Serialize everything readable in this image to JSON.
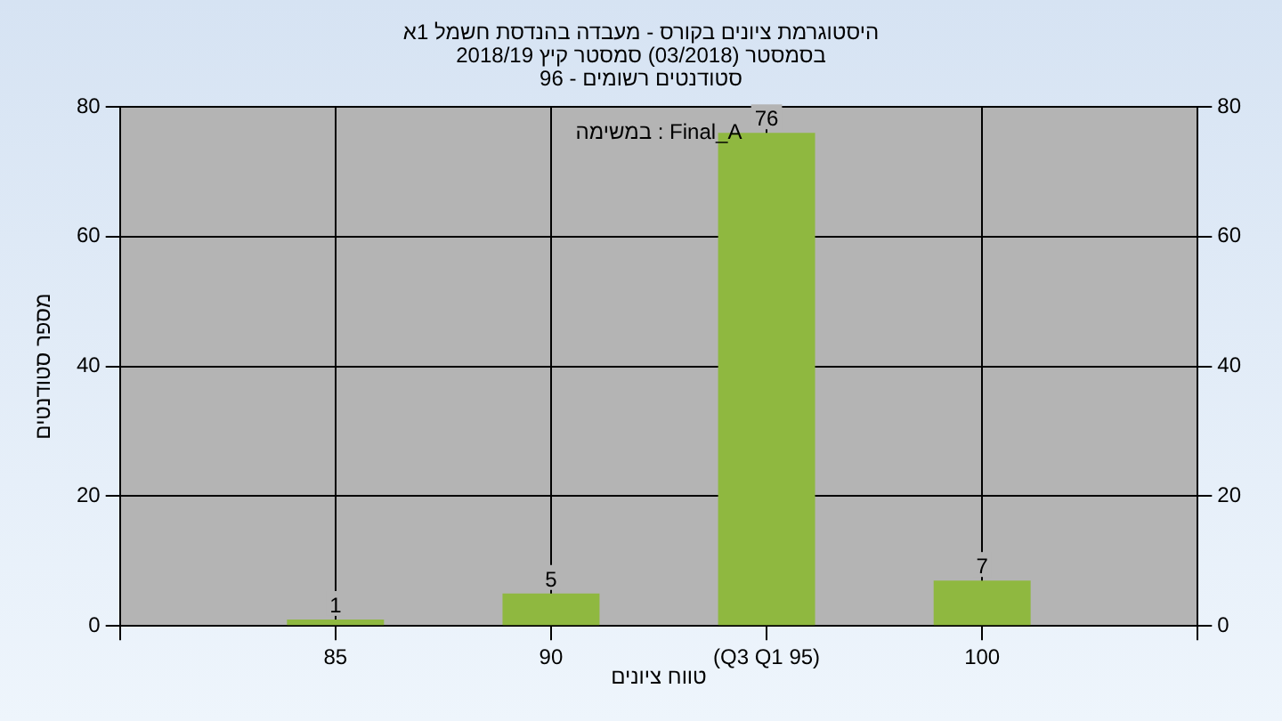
{
  "chart_data": {
    "type": "bar",
    "title": "היסטוגרמת ציונים בקורס - מעבדה בהנדסת חשמל 1א",
    "subtitle": "בסמסטר (03/2018) סמסטר קיץ 2018/19\nסטודנטים רשומים - 96",
    "xlabel": "טווח ציונים",
    "ylabel": "מספר סטודנטים",
    "categories": [
      null,
      "85",
      "90",
      "(Q3 Q1 95)",
      "100",
      null
    ],
    "values": [
      null,
      1,
      5,
      76,
      7,
      null
    ],
    "color": "#8fb840",
    "ylim": [
      0,
      80
    ],
    "yticks": [
      0,
      20,
      40,
      60,
      80
    ],
    "y2lim": [
      0,
      80
    ],
    "y2ticks": [
      0,
      20,
      40,
      60,
      80
    ],
    "annotations": [
      "במשימה : Final_A"
    ],
    "data_labels": true,
    "grid": true
  }
}
